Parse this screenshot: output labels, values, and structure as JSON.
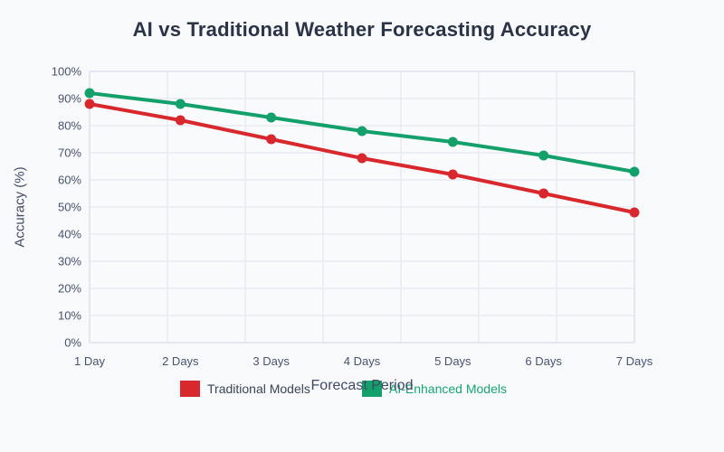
{
  "chart_data": {
    "type": "line",
    "title": "AI vs Traditional Weather Forecasting Accuracy",
    "categories": [
      "1 Day",
      "2 Days",
      "3 Days",
      "4 Days",
      "5 Days",
      "6 Days",
      "7 Days"
    ],
    "series": [
      {
        "name": "Traditional Models",
        "color": "#d9282d",
        "legend_text_color": "#3b4457",
        "values": [
          88,
          82,
          75,
          68,
          62,
          55,
          48
        ]
      },
      {
        "name": "AI-Enhanced Models",
        "color": "#13a06b",
        "legend_text_color": "#17a673",
        "values": [
          92,
          88,
          83,
          78,
          74,
          69,
          63
        ]
      }
    ],
    "xlabel": "Forecast Period",
    "ylabel": "Accuracy (%)",
    "ylim": [
      0,
      100
    ],
    "ytick_step": 10,
    "ytick_suffix": "%",
    "grid": true,
    "legend_position": "bottom",
    "palette": {
      "page_background": "#f8f9fb",
      "plot_background": "#f9fafc",
      "gridline_color": "#e8eaf2",
      "plot_border_color": "#dfe3ee",
      "tick_label_color": "#47536b",
      "title_color": "#2b3347",
      "axis_title_color": "#3f4b63"
    }
  }
}
